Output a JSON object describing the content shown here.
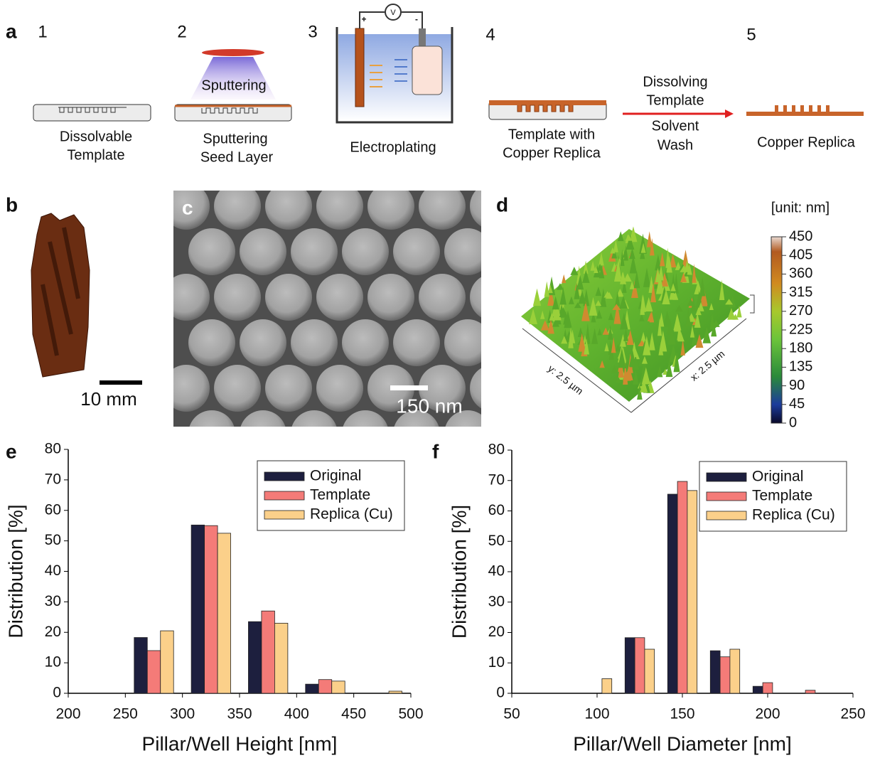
{
  "panel_labels": [
    "a",
    "b",
    "c",
    "d",
    "e",
    "f"
  ],
  "process": {
    "steps": [
      {
        "number": "1",
        "label": [
          "Dissolvable",
          "Template"
        ]
      },
      {
        "number": "2",
        "label": [
          "Sputtering",
          "Seed Layer"
        ]
      },
      {
        "number": "3",
        "label": [
          "Electroplating"
        ]
      },
      {
        "number": "4",
        "label": [
          "Template with",
          "Copper Replica"
        ]
      },
      {
        "number": "5",
        "label": [
          "Copper Replica"
        ]
      }
    ],
    "sputtering": "Sputtering",
    "meter": "V",
    "plus": "+",
    "minus": "-",
    "arrow_top": [
      "Dissolving",
      "Template"
    ],
    "arrow_bottom": [
      "Solvent",
      "Wash"
    ]
  },
  "photo": {
    "scale_bar": "10 mm"
  },
  "sem": {
    "scale_bar": "150 nm"
  },
  "afm": {
    "unit": "[unit: nm]",
    "x_axis": "x: 2.5 µm",
    "y_axis": "y: 2.5 µm",
    "colorbar_lim": [
      0,
      450
    ],
    "colorbar_ticks": [
      0,
      45,
      90,
      135,
      180,
      225,
      270,
      315,
      360,
      405,
      450
    ]
  },
  "chart_data": [
    {
      "type": "bar",
      "xlabel": "Pillar/Well Height [nm]",
      "ylabel": "Distribution [%]",
      "x": [
        275,
        325,
        375,
        425,
        475
      ],
      "series": [
        {
          "name": "Original",
          "color": "#1d1f3e",
          "values": [
            18.3,
            55.2,
            23.5,
            3.0,
            0
          ]
        },
        {
          "name": "Template",
          "color": "#f47b78",
          "values": [
            14.0,
            55.0,
            27.0,
            4.5,
            0
          ]
        },
        {
          "name": "Replica (Cu)",
          "color": "#fbd08a",
          "values": [
            20.5,
            52.5,
            23.0,
            4.0,
            0.7
          ]
        }
      ],
      "xlim": [
        200,
        500
      ],
      "xticks": [
        200,
        250,
        300,
        350,
        400,
        450,
        500
      ],
      "ylim": [
        0,
        80
      ],
      "yticks": [
        0,
        10,
        20,
        30,
        40,
        50,
        60,
        70,
        80
      ],
      "legend": "upper right"
    },
    {
      "type": "bar",
      "xlabel": "Pillar/Well Diameter [nm]",
      "ylabel": "Distribution [%]",
      "x": [
        100,
        125,
        150,
        175,
        200,
        225
      ],
      "series": [
        {
          "name": "Original",
          "color": "#1d1f3e",
          "values": [
            0,
            18.3,
            65.5,
            14.0,
            2.3,
            0
          ]
        },
        {
          "name": "Template",
          "color": "#f47b78",
          "values": [
            0,
            18.3,
            69.7,
            12.0,
            3.5,
            1.0
          ]
        },
        {
          "name": "Replica (Cu)",
          "color": "#fbd08a",
          "values": [
            4.8,
            14.5,
            66.7,
            14.5,
            0,
            0
          ]
        }
      ],
      "xlim": [
        50,
        250
      ],
      "xticks": [
        50,
        100,
        150,
        200,
        250
      ],
      "ylim": [
        0,
        80
      ],
      "yticks": [
        0,
        10,
        20,
        30,
        40,
        50,
        60,
        70,
        80
      ],
      "legend": "upper right"
    }
  ]
}
